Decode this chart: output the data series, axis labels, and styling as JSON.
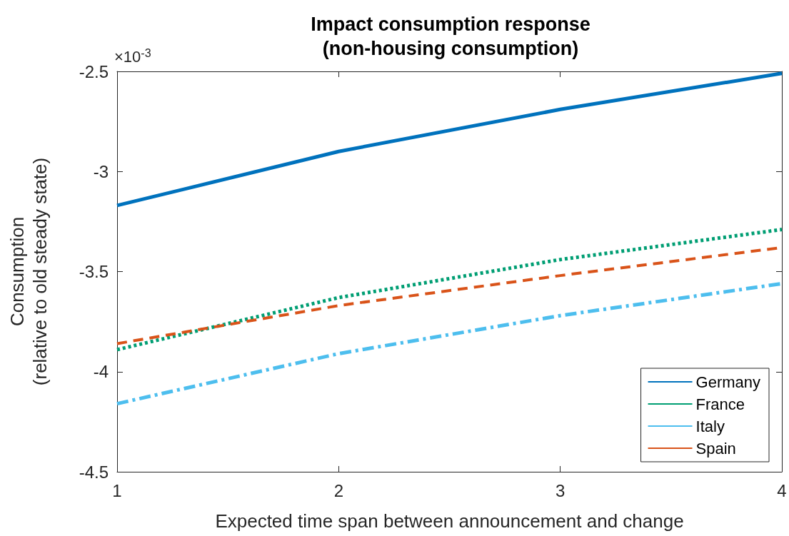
{
  "chart_data": {
    "type": "line",
    "title": "Impact consumption response\n(non-housing consumption)",
    "xlabel": "Expected time span between announcement and change",
    "ylabel": "Consumption\n(relative to old steady state)",
    "annotations": [
      "×10$^{-3}$"
    ],
    "x": [
      1,
      2,
      3,
      4
    ],
    "series": [
      {
        "name": "Germany",
        "color": "#0072bd",
        "line_style": "solid",
        "values": [
          -3.17,
          -2.9,
          -2.69,
          -2.51
        ]
      },
      {
        "name": "France",
        "color": "#009e73",
        "line_style": "dotted",
        "values": [
          -3.89,
          -3.63,
          -3.44,
          -3.29
        ]
      },
      {
        "name": "Italy",
        "color": "#4dbeee",
        "line_style": "dashdot",
        "values": [
          -4.16,
          -3.91,
          -3.72,
          -3.56
        ]
      },
      {
        "name": "Spain",
        "color": "#d95319",
        "line_style": "dashed",
        "values": [
          -3.86,
          -3.67,
          -3.52,
          -3.38
        ]
      }
    ],
    "xlim": [
      1,
      4
    ],
    "xticks": [
      1,
      2,
      3,
      4
    ],
    "ylim": [
      -4.5,
      -2.5
    ],
    "yticks": [
      -4.5,
      -4,
      -3.5,
      -3,
      -2.5
    ],
    "grid": false,
    "legend": "bottom right",
    "marker": "none"
  }
}
